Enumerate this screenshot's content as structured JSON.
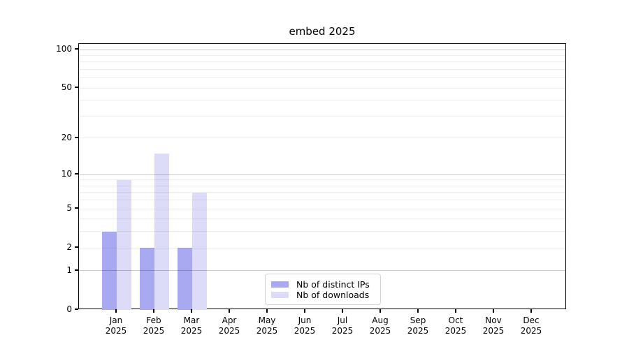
{
  "chart_data": {
    "type": "bar",
    "title": "embed 2025",
    "year_label": "2025",
    "categories": [
      "Jan",
      "Feb",
      "Mar",
      "Apr",
      "May",
      "Jun",
      "Jul",
      "Aug",
      "Sep",
      "Oct",
      "Nov",
      "Dec"
    ],
    "series": [
      {
        "name": "Nb of distinct IPs",
        "color": "#a9a9f1",
        "values": [
          3,
          2,
          2,
          0,
          0,
          0,
          0,
          0,
          0,
          0,
          0,
          0
        ]
      },
      {
        "name": "Nb of downloads",
        "color": "#dcdcf8",
        "values": [
          9,
          15,
          7,
          0,
          0,
          0,
          0,
          0,
          0,
          0,
          0,
          0
        ]
      }
    ],
    "xlabel": "",
    "ylabel": "",
    "yscale": "log1p",
    "ylim": [
      0,
      112
    ],
    "ytick_values": [
      0,
      1,
      2,
      5,
      10,
      20,
      50,
      100
    ],
    "grid_minor_values": [
      2,
      3,
      4,
      5,
      6,
      7,
      8,
      9,
      20,
      30,
      40,
      50,
      60,
      70,
      80,
      90
    ],
    "grid_major_values": [
      1,
      10,
      100
    ],
    "grid": "on",
    "legend_position": "bottom-center"
  }
}
